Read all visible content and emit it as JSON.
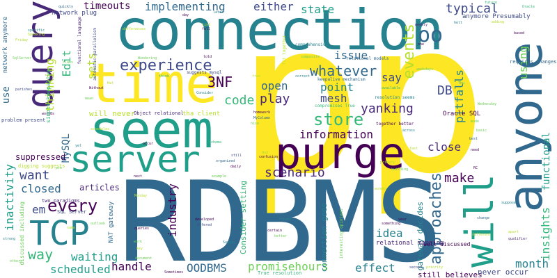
{
  "background": "#ffffff",
  "palette": [
    "#440154",
    "#482878",
    "#3e4a89",
    "#31688e",
    "#26828e",
    "#1f9e89",
    "#35b779",
    "#6ece58",
    "#b5de2b",
    "#fde725"
  ],
  "words": [
    {
      "text": "p",
      "color": "#fde725"
    },
    {
      "text": "p",
      "color": "#fde725"
    },
    {
      "text": "RDBMS",
      "color": "#31688e"
    },
    {
      "text": "connection",
      "color": "#26828e"
    },
    {
      "text": "seem",
      "color": "#1f9e89"
    },
    {
      "text": "time",
      "color": "#fde725"
    },
    {
      "text": "anyone",
      "color": "#31688e"
    },
    {
      "text": "query",
      "color": "#482878"
    },
    {
      "text": "will",
      "color": "#1f9e89"
    },
    {
      "text": "purge",
      "color": "#440154"
    },
    {
      "text": "server",
      "color": "#1f9e89"
    },
    {
      "text": "TCP",
      "color": "#26828e"
    },
    {
      "text": "every",
      "color": "#440154"
    },
    {
      "text": "experience",
      "color": "#3e4a89"
    },
    {
      "text": "whatever",
      "color": "#31688e"
    },
    {
      "text": "approaches",
      "color": "#31688e"
    },
    {
      "text": "store",
      "color": "#35b779"
    },
    {
      "text": "events",
      "color": "#b5de2b"
    },
    {
      "text": "oo",
      "color": "#31688e"
    },
    {
      "text": "yanking",
      "color": "#482878"
    },
    {
      "text": "timeouts",
      "color": "#440154"
    },
    {
      "text": "implementing",
      "color": "#31688e"
    },
    {
      "text": "either",
      "color": "#3e4a89"
    },
    {
      "text": "state",
      "color": "#1f9e89"
    },
    {
      "text": "typical",
      "color": "#3e4a89"
    },
    {
      "text": "code",
      "color": "#35b779"
    },
    {
      "text": "3NF",
      "color": "#440154"
    },
    {
      "text": "mesh",
      "color": "#3e4a89"
    },
    {
      "text": "point",
      "color": "#26828e"
    },
    {
      "text": "play",
      "color": "#482878"
    },
    {
      "text": "open",
      "color": "#31688e"
    },
    {
      "text": "say",
      "color": "#3e4a89"
    },
    {
      "text": "DB",
      "color": "#3e4a89"
    },
    {
      "text": "issue",
      "color": "#31688e"
    },
    {
      "text": "information",
      "color": "#440154"
    },
    {
      "text": "scenario",
      "color": "#482878"
    },
    {
      "text": "close",
      "color": "#482878"
    },
    {
      "text": "make",
      "color": "#440154"
    },
    {
      "text": "want",
      "color": "#3e4a89"
    },
    {
      "text": "closed",
      "color": "#31688e"
    },
    {
      "text": "way",
      "color": "#35b779"
    },
    {
      "text": "em",
      "color": "#3e4a89"
    },
    {
      "text": "waiting",
      "color": "#1f9e89"
    },
    {
      "text": "scheduled",
      "color": "#1f9e89"
    },
    {
      "text": "handle",
      "color": "#440154"
    },
    {
      "text": "OODBMS",
      "color": "#31688e"
    },
    {
      "text": "promisehours",
      "color": "#6ece58"
    },
    {
      "text": "effect",
      "color": "#26828e"
    },
    {
      "text": "month",
      "color": "#26828e"
    },
    {
      "text": "idea",
      "color": "#26828e"
    },
    {
      "text": "industry",
      "color": "#440154"
    },
    {
      "text": "articles",
      "color": "#482878"
    },
    {
      "text": "insights",
      "color": "#35b779"
    },
    {
      "text": "functional",
      "color": "#1f9e89"
    },
    {
      "text": "pitfalls",
      "color": "#26828e"
    },
    {
      "text": "using",
      "color": "#6ece58"
    },
    {
      "text": "thinking",
      "color": "#b5de2b"
    },
    {
      "text": "Edit",
      "color": "#35b779"
    },
    {
      "text": "sets",
      "color": "#b5de2b"
    },
    {
      "text": "use",
      "color": "#31688e"
    },
    {
      "text": "inactivity",
      "color": "#1f9e89"
    },
    {
      "text": "MySQL",
      "color": "#31688e"
    },
    {
      "text": "suppressed",
      "color": "#440154"
    },
    {
      "text": "network plug",
      "color": "#3e4a89"
    },
    {
      "text": "will never",
      "color": "#b5de2b"
    },
    {
      "text": "connection goes",
      "color": "#26828e"
    },
    {
      "text": "Consider setting",
      "color": "#35b779"
    },
    {
      "text": "gateway decides",
      "color": "#26828e"
    },
    {
      "text": "still believes",
      "color": "#440154"
    },
    {
      "text": "never occur",
      "color": "#3e4a89"
    },
    {
      "text": "NAT gateway",
      "color": "#31688e"
    },
    {
      "text": "discussed including",
      "color": "#6ece58"
    },
    {
      "text": "network anymore",
      "color": "#31688e"
    },
    {
      "text": "simple keepalive",
      "color": "#35b779"
    },
    {
      "text": "anymore Presumably",
      "color": "#3e4a89"
    },
    {
      "text": "Oracle SQL",
      "color": "#440154"
    },
    {
      "text": "relational mapping",
      "color": "#482878"
    },
    {
      "text": "well discussed",
      "color": "#440154"
    },
    {
      "text": "two paradigms",
      "color": "#482878"
    },
    {
      "text": "Object relational",
      "color": "#482878"
    },
    {
      "text": "tha client",
      "color": "#b5de2b"
    },
    {
      "text": "SQL Server",
      "color": "#3e4a89"
    },
    {
      "text": "problem present",
      "color": "#3e4a89"
    },
    {
      "text": "digging suggests",
      "color": "#b5de2b"
    },
    {
      "text": "keepalive mechanism",
      "color": "#31688e"
    },
    {
      "text": "resolution seems",
      "color": "#26828e"
    },
    {
      "text": "compromises True",
      "color": "#35b779"
    },
    {
      "text": "suggests mysql",
      "color": "#3e4a89"
    },
    {
      "text": "relational models",
      "color": "#31688e"
    },
    {
      "text": "functional language",
      "color": "#482878"
    },
    {
      "text": "automatic parallelism",
      "color": "#3e4a89"
    },
    {
      "text": "together better",
      "color": "#440154"
    },
    {
      "text": "True resolution",
      "color": "#35b779"
    },
    {
      "text": "requires changes",
      "color": "#31688e"
    },
    {
      "text": "comprehensive",
      "color": "#26828e"
    },
    {
      "text": "fit together",
      "color": "#b5de2b"
    },
    {
      "text": "interesting opinions",
      "color": "#6ece58"
    },
    {
      "text": "Consider",
      "color": "#26828e"
    },
    {
      "text": "quickly",
      "color": "#31688e"
    },
    {
      "text": "Sometimes",
      "color": "#440154"
    },
    {
      "text": "Wondering",
      "color": "#6ece58"
    },
    {
      "text": "differences",
      "color": "#b5de2b"
    },
    {
      "text": "homework",
      "color": "#440154"
    },
    {
      "text": "MyColumn",
      "color": "#31688e"
    },
    {
      "text": "developed",
      "color": "#440154"
    },
    {
      "text": "Speaking",
      "color": "#b5de2b"
    },
    {
      "text": "specific",
      "color": "#26828e"
    },
    {
      "text": "Friday",
      "color": "#b5de2b"
    },
    {
      "text": "SqlServer",
      "color": "#6ece58"
    },
    {
      "text": "parishes",
      "color": "#3e4a89"
    },
    {
      "text": "qualifier",
      "color": "#482878"
    },
    {
      "text": "something",
      "color": "#440154"
    },
    {
      "text": "schedules",
      "color": "#b5de2b"
    },
    {
      "text": "organized",
      "color": "#31688e"
    },
    {
      "text": "document",
      "color": "#6ece58"
    },
    {
      "text": "example",
      "color": "#6ece58"
    },
    {
      "text": "Sunday",
      "color": "#26828e"
    },
    {
      "text": "Monday",
      "color": "#b5de2b"
    },
    {
      "text": "building",
      "color": "#6ece58"
    },
    {
      "text": "wonder",
      "color": "#b5de2b"
    },
    {
      "text": "strong",
      "color": "#26828e"
    },
    {
      "text": "outlook",
      "color": "#6ece58"
    },
    {
      "text": "weekly",
      "color": "#482878"
    },
    {
      "text": "correct",
      "color": "#26828e"
    },
    {
      "text": "future",
      "color": "#35b779"
    },
    {
      "text": "Oracle",
      "color": "#35b779"
    },
    {
      "text": "across",
      "color": "#26828e"
    },
    {
      "text": "friend",
      "color": "#26828e"
    },
    {
      "text": "offered",
      "color": "#3e4a89"
    },
    {
      "text": "queries",
      "color": "#440154"
    },
    {
      "text": "certain",
      "color": "#440154"
    },
    {
      "text": "better",
      "color": "#6ece58"
    },
    {
      "text": "second",
      "color": "#3e4a89"
    },
    {
      "text": "priority",
      "color": "#b5de2b"
    },
    {
      "text": "daily",
      "color": "#440154"
    },
    {
      "text": "hell",
      "color": "#26828e"
    },
    {
      "text": "based",
      "color": "#440154"
    },
    {
      "text": "need",
      "color": "#440154"
    },
    {
      "text": "best",
      "color": "#31688e"
    },
    {
      "text": "think",
      "color": "#35b779"
    },
    {
      "text": "class",
      "color": "#6ece58"
    },
    {
      "text": "year",
      "color": "#440154"
    },
    {
      "text": "name",
      "color": "#b5de2b"
    },
    {
      "text": "mean",
      "color": "#6ece58"
    },
    {
      "text": "list",
      "color": "#b5de2b"
    },
    {
      "text": "key",
      "color": "#b5de2b"
    },
    {
      "text": "Thu",
      "color": "#35b779"
    },
    {
      "text": "yet",
      "color": "#26828e"
    },
    {
      "text": "mode",
      "color": "#6ece58"
    },
    {
      "text": "schema",
      "color": "#35b779"
    },
    {
      "text": "Without",
      "color": "#440154"
    },
    {
      "text": "nice",
      "color": "#6ece58"
    },
    {
      "text": "free",
      "color": "#b5de2b"
    },
    {
      "text": "next",
      "color": "#440154"
    },
    {
      "text": "Wednesday",
      "color": "#6ece58"
    },
    {
      "text": "later",
      "color": "#26828e"
    },
    {
      "text": "change",
      "color": "#31688e"
    },
    {
      "text": "different",
      "color": "#b5de2b"
    },
    {
      "text": "work",
      "color": "#6ece58"
    },
    {
      "text": "apart",
      "color": "#b5de2b"
    },
    {
      "text": "Hat",
      "color": "#b5de2b"
    },
    {
      "text": "Bad",
      "color": "#b5de2b"
    },
    {
      "text": "day",
      "color": "#440154"
    },
    {
      "text": "fast",
      "color": "#b5de2b"
    },
    {
      "text": "available",
      "color": "#35b779"
    },
    {
      "text": "suppose",
      "color": "#26828e"
    },
    {
      "text": "confusion",
      "color": "#440154"
    },
    {
      "text": "others",
      "color": "#6ece58"
    },
    {
      "text": "worlds",
      "color": "#440154"
    },
    {
      "text": "occur",
      "color": "#440154"
    },
    {
      "text": "told",
      "color": "#440154"
    },
    {
      "text": "pre",
      "color": "#6ece58"
    },
    {
      "text": "RC",
      "color": "#440154"
    },
    {
      "text": "basic",
      "color": "#6ece58"
    },
    {
      "text": "composite",
      "color": "#6ece58"
    },
    {
      "text": "primary",
      "color": "#b5de2b"
    },
    {
      "text": "one",
      "color": "#440154"
    },
    {
      "text": "still",
      "color": "#3e4a89"
    },
    {
      "text": "full",
      "color": "#440154"
    },
    {
      "text": "adding",
      "color": "#b5de2b"
    },
    {
      "text": "weekdays",
      "color": "#6ece58"
    }
  ]
}
